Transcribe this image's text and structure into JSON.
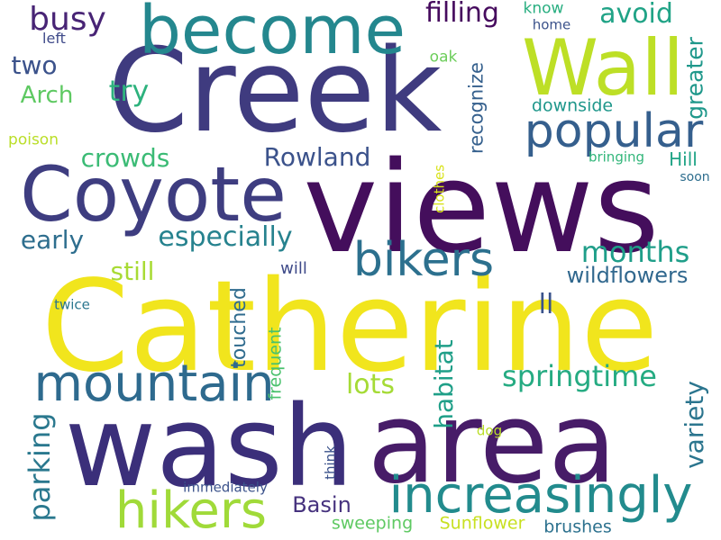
{
  "palette": {
    "deep_purple": "#440154",
    "indigo": "#472c7a",
    "blue": "#3b518b",
    "steel_blue": "#2c718e",
    "teal": "#21908d",
    "green": "#27ad81",
    "lime": "#5cc863",
    "yellow_green": "#aadc32",
    "yellow": "#fde725"
  },
  "words": [
    {
      "text": "Creek",
      "color": "#3f3b7f"
    },
    {
      "text": "views",
      "color": "#440e5c"
    },
    {
      "text": "Catherine",
      "color": "#f1e51d"
    },
    {
      "text": "wash",
      "color": "#3b2f7a"
    },
    {
      "text": "area",
      "color": "#471c68"
    },
    {
      "text": "Coyote",
      "color": "#3e3d80"
    },
    {
      "text": "become",
      "color": "#24878e"
    },
    {
      "text": "Wall",
      "color": "#bddf26"
    },
    {
      "text": "popular",
      "color": "#355f8d"
    },
    {
      "text": "bikers",
      "color": "#2c708e"
    },
    {
      "text": "increasingly",
      "color": "#228b8d"
    },
    {
      "text": "mountain",
      "color": "#2e6a8e"
    },
    {
      "text": "hikers",
      "color": "#a0da39"
    },
    {
      "text": "busy",
      "color": "#482475"
    },
    {
      "text": "two",
      "color": "#3b528b"
    },
    {
      "text": "Arch",
      "color": "#5ec962"
    },
    {
      "text": "try",
      "color": "#2db27d"
    },
    {
      "text": "filling",
      "color": "#460b5e"
    },
    {
      "text": "avoid",
      "color": "#20a386"
    },
    {
      "text": "know",
      "color": "#28ae80"
    },
    {
      "text": "home",
      "color": "#3b528b"
    },
    {
      "text": "left",
      "color": "#3e4989"
    },
    {
      "text": "oak",
      "color": "#6ccd5a"
    },
    {
      "text": "greater",
      "color": "#1f988b"
    },
    {
      "text": "recognize",
      "color": "#35608d"
    },
    {
      "text": "downside",
      "color": "#1f978b"
    },
    {
      "text": "crowds",
      "color": "#3bbb75"
    },
    {
      "text": "Rowland",
      "color": "#3b528b"
    },
    {
      "text": "poison",
      "color": "#bade28"
    },
    {
      "text": "bringing",
      "color": "#32b67a"
    },
    {
      "text": "Hill",
      "color": "#20a486"
    },
    {
      "text": "clothes",
      "color": "#d8e219"
    },
    {
      "text": "soon",
      "color": "#2e6e8e"
    },
    {
      "text": "early",
      "color": "#2e6e8e"
    },
    {
      "text": "especially",
      "color": "#26828e"
    },
    {
      "text": "months",
      "color": "#1f9e89"
    },
    {
      "text": "still",
      "color": "#a8db34"
    },
    {
      "text": "wildflowers",
      "color": "#31688e"
    },
    {
      "text": "will",
      "color": "#3e4a89"
    },
    {
      "text": "ll",
      "color": "#3a538b"
    },
    {
      "text": "twice",
      "color": "#2a768e"
    },
    {
      "text": "touched",
      "color": "#2f6b8e"
    },
    {
      "text": "frequent",
      "color": "#4ac16d"
    },
    {
      "text": "habitat",
      "color": "#1f9f88"
    },
    {
      "text": "lots",
      "color": "#a5db36"
    },
    {
      "text": "springtime",
      "color": "#25ab82"
    },
    {
      "text": "variety",
      "color": "#2b758e"
    },
    {
      "text": "parking",
      "color": "#2a788e"
    },
    {
      "text": "think",
      "color": "#3b528b"
    },
    {
      "text": "dog",
      "color": "#bade28"
    },
    {
      "text": "immediately",
      "color": "#3b528b"
    },
    {
      "text": "Basin",
      "color": "#46327e"
    },
    {
      "text": "sweeping",
      "color": "#5ec962"
    },
    {
      "text": "Sunflower",
      "color": "#c8e020"
    },
    {
      "text": "brushes",
      "color": "#2c718e"
    }
  ]
}
